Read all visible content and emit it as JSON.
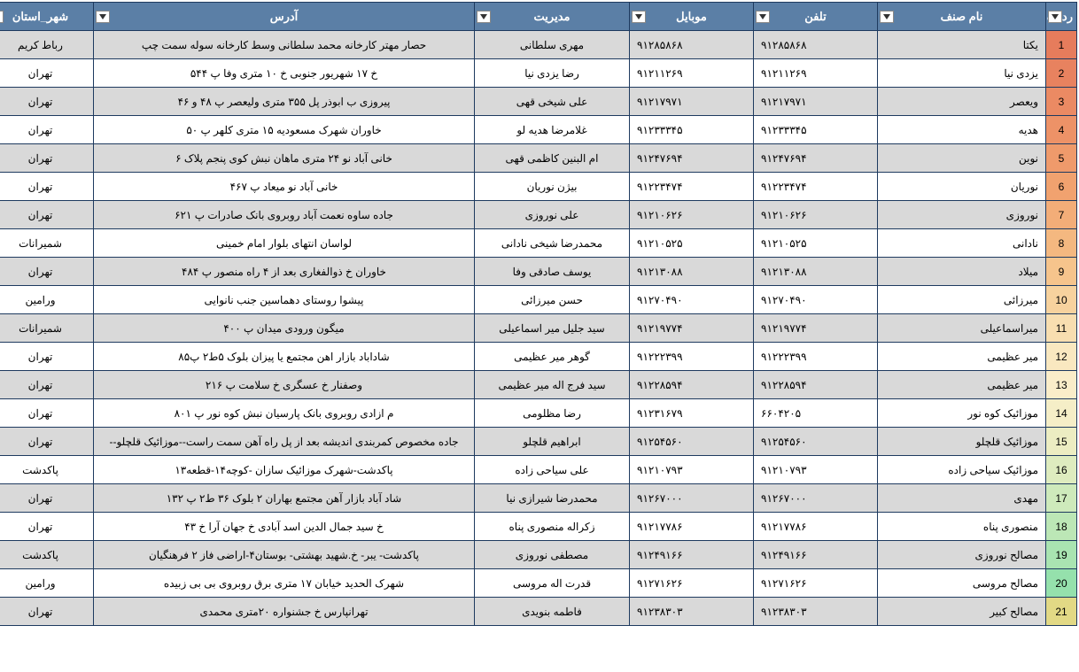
{
  "headers": {
    "row": "ردیف",
    "name": "نام صنف",
    "tel": "تلفن",
    "mob": "موبایل",
    "mgr": "مدیریت",
    "addr": "آدرس",
    "city": "شهر_استان"
  },
  "row_colors": [
    "#e67c5c",
    "#e8825f",
    "#eb8a63",
    "#ed9267",
    "#ef9a6b",
    "#f1a26f",
    "#f3ad78",
    "#f4b880",
    "#f6c48c",
    "#f7d29e",
    "#f8deb0",
    "#f9e8c0",
    "#faedc9",
    "#f5eec7",
    "#ecedc2",
    "#deecbf",
    "#ceeabb",
    "#bce7b6",
    "#a9e4b1",
    "#95e1ac",
    "#e2d985"
  ],
  "rows": [
    {
      "n": "1",
      "name": "یکتا",
      "tel": "۹۱۲۸۵۸۶۸",
      "mob": "۹۱۲۸۵۸۶۸",
      "mgr": "مهری سلطانی",
      "addr": "حصار مهتر کارخانه محمد سلطانی وسط کارخانه سوله سمت چپ",
      "city": "رباط کریم"
    },
    {
      "n": "2",
      "name": "یزدی نیا",
      "tel": "۹۱۲۱۱۲۶۹",
      "mob": "۹۱۲۱۱۲۶۹",
      "mgr": "رضا یزدی نیا",
      "addr": "خ ۱۷ شهریور جنوبی خ ۱۰ متری وفا پ ۵۴۴",
      "city": "تهران"
    },
    {
      "n": "3",
      "name": "ویعصر",
      "tel": "۹۱۲۱۷۹۷۱",
      "mob": "۹۱۲۱۷۹۷۱",
      "mgr": "علی شیخی قهی",
      "addr": "پیروزی ب ابوذر پل ۳۵۵ متری ولیعصر پ ۴۸ و ۴۶",
      "city": "تهران"
    },
    {
      "n": "4",
      "name": "هدیه",
      "tel": "۹۱۲۳۳۳۴۵",
      "mob": "۹۱۲۳۳۳۴۵",
      "mgr": "غلامرضا هدیه لو",
      "addr": "خاوران شهرک مسعودیه ۱۵ متری کلهر پ ۵۰",
      "city": "تهران"
    },
    {
      "n": "5",
      "name": "نوین",
      "tel": "۹۱۲۴۷۶۹۴",
      "mob": "۹۱۲۴۷۶۹۴",
      "mgr": "ام البنین کاظمی قهی",
      "addr": "خانی آباد نو ۲۴ متری ماهان نبش کوی پنجم پلاک ۶",
      "city": "تهران"
    },
    {
      "n": "6",
      "name": "نوریان",
      "tel": "۹۱۲۲۳۴۷۴",
      "mob": "۹۱۲۲۳۴۷۴",
      "mgr": "بیژن نوریان",
      "addr": "خانی آباد نو میعاد پ ۴۶۷",
      "city": "تهران"
    },
    {
      "n": "7",
      "name": "نوروزی",
      "tel": "۹۱۲۱۰۶۲۶",
      "mob": "۹۱۲۱۰۶۲۶",
      "mgr": "علی نوروزی",
      "addr": "جاده ساوه نعمت آباد روبروی بانک صادرات پ ۶۲۱",
      "city": "تهران"
    },
    {
      "n": "8",
      "name": "نادانی",
      "tel": "۹۱۲۱۰۵۲۵",
      "mob": "۹۱۲۱۰۵۲۵",
      "mgr": "محمدرضا شیخی نادانی",
      "addr": "لواسان انتهای بلوار امام خمینی",
      "city": "شمیرانات"
    },
    {
      "n": "9",
      "name": "میلاد",
      "tel": "۹۱۲۱۳۰۸۸",
      "mob": "۹۱۲۱۳۰۸۸",
      "mgr": "یوسف صادقی وفا",
      "addr": "خاوران خ ذوالفغاری بعد از ۴ راه منصور پ ۴۸۴",
      "city": "تهران"
    },
    {
      "n": "10",
      "name": "میرزائی",
      "tel": "۹۱۲۷۰۴۹۰",
      "mob": "۹۱۲۷۰۴۹۰",
      "mgr": "حسن میرزائی",
      "addr": "پیشوا روستای دهماسین جنب نانوایی",
      "city": "ورامین"
    },
    {
      "n": "11",
      "name": "میراسماعیلی",
      "tel": "۹۱۲۱۹۷۷۴",
      "mob": "۹۱۲۱۹۷۷۴",
      "mgr": "سید جلیل میر اسماعیلی",
      "addr": "میگون ورودی میدان پ ۴۰۰",
      "city": "شمیرانات"
    },
    {
      "n": "12",
      "name": "میر عظیمی",
      "tel": "۹۱۲۲۲۳۹۹",
      "mob": "۹۱۲۲۲۳۹۹",
      "mgr": "گوهر میر عظیمی",
      "addr": "شاداباد بازار اهن مجتمع یا پیزان بلوک ۵ط۲ پ۸۵",
      "city": "تهران"
    },
    {
      "n": "13",
      "name": "میر عظیمی",
      "tel": "۹۱۲۲۸۵۹۴",
      "mob": "۹۱۲۲۸۵۹۴",
      "mgr": "سید فرج اله میر عظیمی",
      "addr": "وصفنار خ عسگری خ سلامت پ ۲۱۶",
      "city": "تهران"
    },
    {
      "n": "14",
      "name": "موزائیک کوه نور",
      "tel": "۶۶۰۴۲۰۵",
      "mob": "۹۱۲۳۱۶۷۹",
      "mgr": "رضا مظلومی",
      "addr": "م ازادی روبروی بانک پارسیان نبش کوه نور پ ۸۰۱",
      "city": "تهران"
    },
    {
      "n": "15",
      "name": "موزائیک قلچلو",
      "tel": "۹۱۲۵۴۵۶۰",
      "mob": "۹۱۲۵۴۵۶۰",
      "mgr": "ابراهیم قلچلو",
      "addr": "جاده مخصوص کمربندی اندیشه بعد از پل راه آهن سمت راست--موزائیک قلچلو--",
      "city": "تهران"
    },
    {
      "n": "16",
      "name": "موزائیک سیاحی زاده",
      "tel": "۹۱۲۱۰۷۹۳",
      "mob": "۹۱۲۱۰۷۹۳",
      "mgr": "علی سیاحی زاده",
      "addr": "پاکدشت-شهرک موزائیک سازان -کوچه۱۴-قطعه۱۳",
      "city": "پاکدشت"
    },
    {
      "n": "17",
      "name": "مهدی",
      "tel": "۹۱۲۶۷۰۰۰",
      "mob": "۹۱۲۶۷۰۰۰",
      "mgr": "محمدرضا شیرازی نیا",
      "addr": "شاد آباد بازار آهن مجتمع بهاران ۲ بلوک ۳۶ ط۲ پ ۱۳۲",
      "city": "تهران"
    },
    {
      "n": "18",
      "name": "منصوری پناه",
      "tel": "۹۱۲۱۷۷۸۶",
      "mob": "۹۱۲۱۷۷۸۶",
      "mgr": "زکراله منصوری پناه",
      "addr": "خ سید جمال الدین اسد آبادی خ جهان آرا خ ۴۳",
      "city": "تهران"
    },
    {
      "n": "19",
      "name": "مصالح نوروزی",
      "tel": "۹۱۲۴۹۱۶۶",
      "mob": "۹۱۲۴۹۱۶۶",
      "mgr": "مصطفی نوروزی",
      "addr": "پاکدشت- یبر- خ.شهید بهشتی- بوستان۴-اراضی فاز ۲ فرهنگیان",
      "city": "پاکدشت"
    },
    {
      "n": "20",
      "name": "مصالح مروسی",
      "tel": "۹۱۲۷۱۶۲۶",
      "mob": "۹۱۲۷۱۶۲۶",
      "mgr": "قدرت اله مروسی",
      "addr": "شهرک الحدید خیابان ۱۷ متری برق روبروی بی بی زبیده",
      "city": "ورامین"
    },
    {
      "n": "21",
      "name": "مصالح کبیر",
      "tel": "۹۱۲۳۸۳۰۳",
      "mob": "۹۱۲۳۸۳۰۳",
      "mgr": "فاطمه بنویدی",
      "addr": "تهرانپارس خ جشنواره ۲۰متری محمدی",
      "city": "تهران"
    }
  ]
}
